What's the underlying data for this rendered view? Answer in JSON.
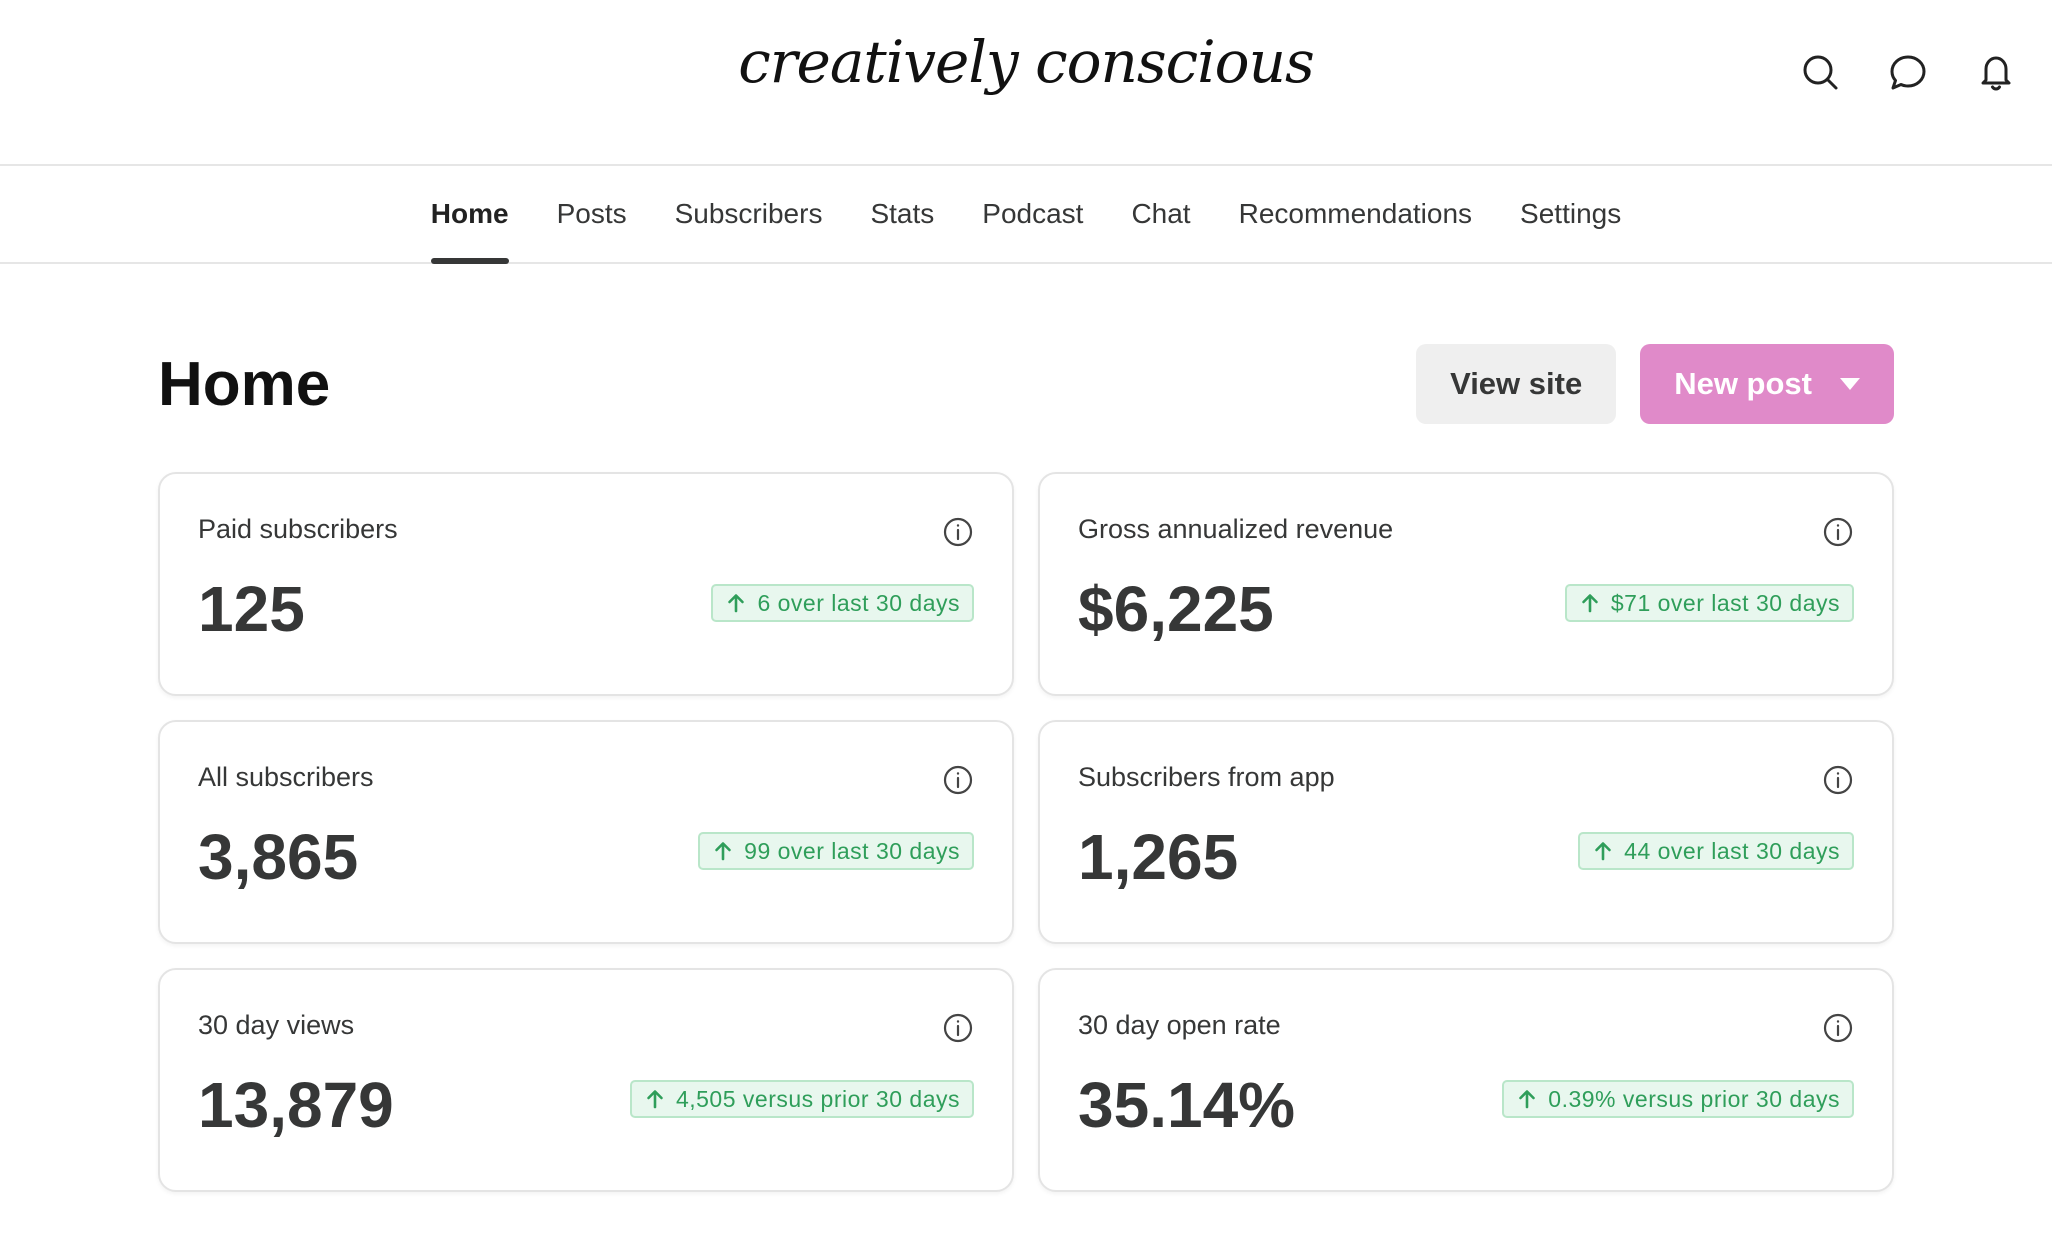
{
  "header": {
    "brand": "creatively conscious",
    "icons": [
      "search-icon",
      "chat-bubble-icon",
      "bell-icon"
    ]
  },
  "nav": {
    "tabs": [
      {
        "label": "Home",
        "active": true
      },
      {
        "label": "Posts"
      },
      {
        "label": "Subscribers"
      },
      {
        "label": "Stats"
      },
      {
        "label": "Podcast"
      },
      {
        "label": "Chat"
      },
      {
        "label": "Recommendations"
      },
      {
        "label": "Settings"
      }
    ]
  },
  "page": {
    "title": "Home",
    "view_site_label": "View site",
    "new_post_label": "New post"
  },
  "cards": [
    {
      "label": "Paid subscribers",
      "value": "125",
      "delta": "6 over last 30 days"
    },
    {
      "label": "Gross annualized revenue",
      "value": "$6,225",
      "delta": "$71 over last 30 days"
    },
    {
      "label": "All subscribers",
      "value": "3,865",
      "delta": "99 over last 30 days"
    },
    {
      "label": "Subscribers from app",
      "value": "1,265",
      "delta": "44 over last 30 days"
    },
    {
      "label": "30 day views",
      "value": "13,879",
      "delta": "4,505 versus prior 30 days"
    },
    {
      "label": "30 day open rate",
      "value": "35.14%",
      "delta": "0.39% versus prior 30 days"
    }
  ],
  "colors": {
    "accent": "#e08ac9",
    "positive": "#2f9e5a",
    "positive_bg": "#e8f7ee"
  }
}
